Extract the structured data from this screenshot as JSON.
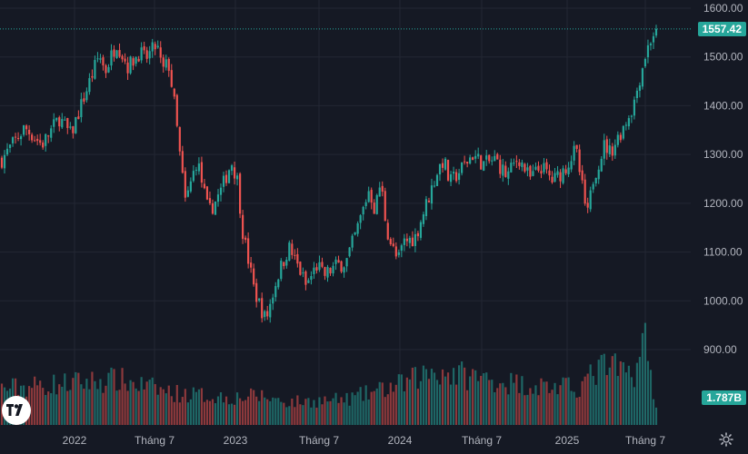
{
  "chart_data": {
    "type": "candlestick",
    "y_axis": {
      "side": "right",
      "ticks": [
        "1600.00",
        "1500.00",
        "1400.00",
        "1300.00",
        "1200.00",
        "1100.00",
        "1000.00",
        "900.00"
      ],
      "range": [
        840,
        1620
      ]
    },
    "x_axis": {
      "tick_labels": [
        "2022",
        "Tháng 7",
        "2023",
        "Tháng 7",
        "2024",
        "Tháng 7",
        "2025",
        "Tháng 7"
      ]
    },
    "last_price": {
      "value": 1557.42,
      "label": "1557.42"
    },
    "last_volume": {
      "label": "1.787B"
    },
    "series_shape": [
      [
        0,
        1290
      ],
      [
        4,
        1355
      ],
      [
        7,
        1320
      ],
      [
        10,
        1375
      ],
      [
        12,
        1340
      ],
      [
        15,
        1440
      ],
      [
        17,
        1505
      ],
      [
        18,
        1470
      ],
      [
        20,
        1530
      ],
      [
        22,
        1480
      ],
      [
        24,
        1510
      ],
      [
        25,
        1495
      ],
      [
        27,
        1525
      ],
      [
        28,
        1470
      ],
      [
        29,
        1490
      ],
      [
        30,
        1410
      ],
      [
        31,
        1300
      ],
      [
        32,
        1200
      ],
      [
        34,
        1290
      ],
      [
        36,
        1180
      ],
      [
        38,
        1220
      ],
      [
        40,
        1285
      ],
      [
        41,
        1250
      ],
      [
        42,
        1140
      ],
      [
        44,
        1020
      ],
      [
        46,
        960
      ],
      [
        48,
        1050
      ],
      [
        50,
        1110
      ],
      [
        52,
        1060
      ],
      [
        53,
        1030
      ],
      [
        55,
        1075
      ],
      [
        56,
        1050
      ],
      [
        58,
        1070
      ],
      [
        60,
        1080
      ],
      [
        62,
        1150
      ],
      [
        64,
        1230
      ],
      [
        65,
        1185
      ],
      [
        66,
        1245
      ],
      [
        67,
        1150
      ],
      [
        68,
        1110
      ],
      [
        69,
        1080
      ],
      [
        70,
        1120
      ],
      [
        72,
        1130
      ],
      [
        74,
        1200
      ],
      [
        76,
        1270
      ],
      [
        77,
        1290
      ],
      [
        78,
        1240
      ],
      [
        80,
        1270
      ],
      [
        82,
        1300
      ],
      [
        84,
        1280
      ],
      [
        86,
        1290
      ],
      [
        88,
        1255
      ],
      [
        90,
        1295
      ],
      [
        92,
        1250
      ],
      [
        94,
        1275
      ],
      [
        96,
        1245
      ],
      [
        98,
        1270
      ],
      [
        100,
        1310
      ],
      [
        101,
        1240
      ],
      [
        102,
        1170
      ],
      [
        103,
        1250
      ],
      [
        105,
        1320
      ],
      [
        106,
        1305
      ],
      [
        108,
        1350
      ],
      [
        110,
        1400
      ],
      [
        112,
        1500
      ],
      [
        113,
        1535
      ],
      [
        114,
        1557
      ]
    ],
    "volume_shape": [
      [
        0,
        0.4
      ],
      [
        10,
        0.45
      ],
      [
        20,
        0.5
      ],
      [
        30,
        0.35
      ],
      [
        40,
        0.3
      ],
      [
        45,
        0.32
      ],
      [
        50,
        0.25
      ],
      [
        60,
        0.28
      ],
      [
        70,
        0.45
      ],
      [
        75,
        0.6
      ],
      [
        80,
        0.55
      ],
      [
        90,
        0.45
      ],
      [
        100,
        0.4
      ],
      [
        105,
        0.65
      ],
      [
        110,
        0.55
      ],
      [
        112,
        0.95
      ],
      [
        114,
        0.2
      ]
    ]
  },
  "colors": {
    "background": "#151924",
    "grid": "#232733",
    "up": "#26a69a",
    "down": "#ef5350",
    "up_volume": "#26a69a",
    "down_volume": "#ef5350",
    "last_price_line": "#26a69a",
    "axis_text": "#b2b5be"
  },
  "icons": {
    "logo": "tradingview-logo-icon",
    "settings": "gear-icon"
  }
}
